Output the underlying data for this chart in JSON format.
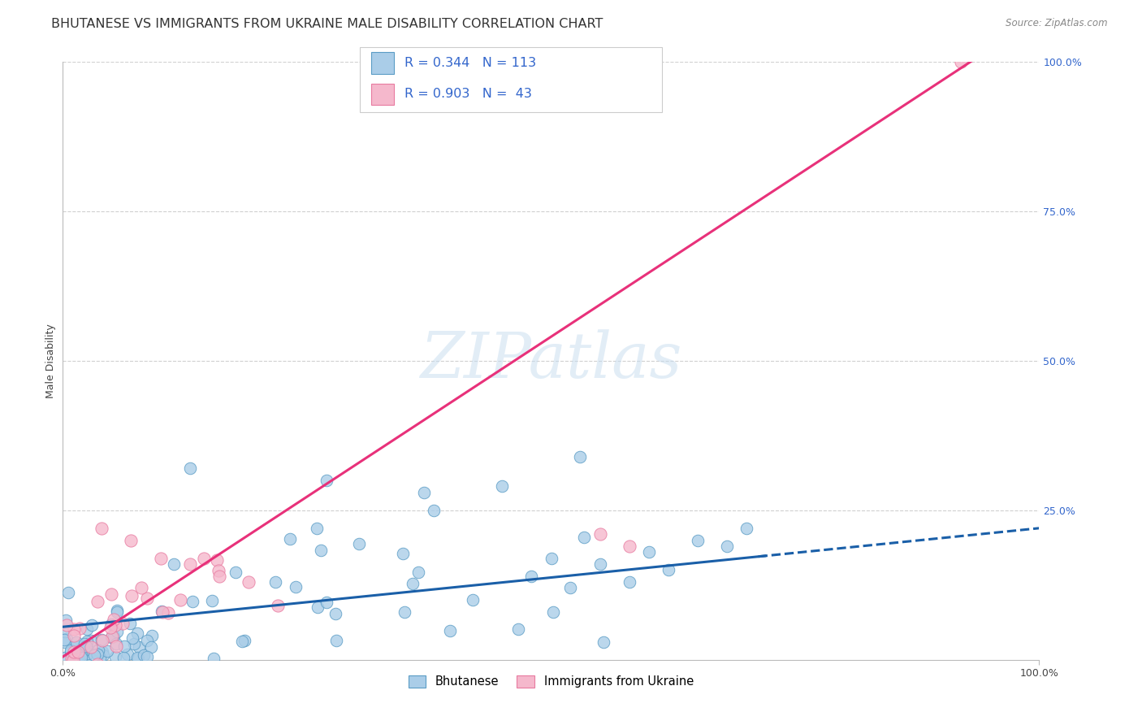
{
  "title": "BHUTANESE VS IMMIGRANTS FROM UKRAINE MALE DISABILITY CORRELATION CHART",
  "source": "Source: ZipAtlas.com",
  "ylabel": "Male Disability",
  "watermark": "ZIPatlas",
  "xlim": [
    0,
    1
  ],
  "ylim": [
    0,
    1
  ],
  "ytick_labels_right": [
    "100.0%",
    "75.0%",
    "50.0%",
    "25.0%"
  ],
  "ytick_positions_right": [
    1.0,
    0.75,
    0.5,
    0.25
  ],
  "blue_scatter_fill": "#aacde8",
  "blue_scatter_edge": "#5a9cc5",
  "pink_scatter_fill": "#f5b8cc",
  "pink_scatter_edge": "#e87aa0",
  "blue_line_color": "#1a5fa8",
  "pink_line_color": "#e8317a",
  "right_tick_color": "#3366cc",
  "grid_color": "#d0d0d0",
  "background_color": "#ffffff",
  "title_fontsize": 11.5,
  "axis_label_fontsize": 9,
  "tick_fontsize": 9,
  "blue_line_intercept": 0.055,
  "blue_line_slope": 0.165,
  "pink_line_intercept": 0.005,
  "pink_line_slope": 1.07,
  "blue_dash_cutoff": 0.72
}
